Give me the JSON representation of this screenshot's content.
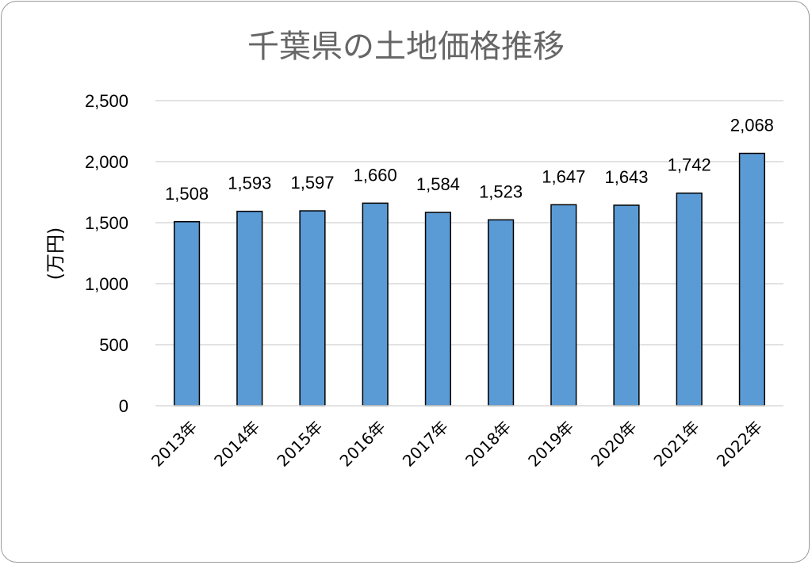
{
  "chart_data": {
    "type": "bar",
    "title": "千葉県の土地価格推移",
    "xlabel": "",
    "ylabel": "(万円)",
    "categories": [
      "2013年",
      "2014年",
      "2015年",
      "2016年",
      "2017年",
      "2018年",
      "2019年",
      "2020年",
      "2021年",
      "2022年"
    ],
    "values": [
      1508,
      1593,
      1597,
      1660,
      1584,
      1523,
      1647,
      1643,
      1742,
      2068
    ],
    "data_labels": [
      "1,508",
      "1,593",
      "1,597",
      "1,660",
      "1,584",
      "1,523",
      "1,647",
      "1,643",
      "1,742",
      "2,068"
    ],
    "ylim": [
      0,
      2500
    ],
    "yticks": [
      0,
      500,
      1000,
      1500,
      2000,
      2500
    ],
    "ytick_labels": [
      "0",
      "500",
      "1,000",
      "1,500",
      "2,000",
      "2,500"
    ],
    "grid": true,
    "legend": "none",
    "colors": {
      "bar": "#5b9bd5",
      "bar_edge": "#000000",
      "grid": "#d9d9d9",
      "title": "#666666"
    }
  }
}
